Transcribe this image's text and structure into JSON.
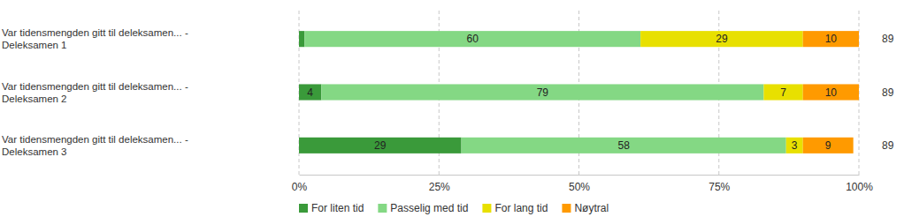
{
  "chart_data": {
    "type": "bar",
    "orientation": "horizontal",
    "stacked": true,
    "data_labels": true,
    "grid": true,
    "legend": "bottom",
    "categories": [
      "Var tidensmengden gitt til deleksamen... - Deleksamen 1",
      "Var tidensmengden gitt til deleksamen... - Deleksamen 2",
      "Var tidensmengden gitt til deleksamen... - Deleksamen 3"
    ],
    "series": [
      {
        "name": "For liten tid",
        "color": "#3a9a3a",
        "values": [
          1,
          4,
          29
        ],
        "value_labels": [
          null,
          "4",
          "29"
        ]
      },
      {
        "name": "Passelig med tid",
        "color": "#84d884",
        "values": [
          60,
          79,
          58
        ],
        "value_labels": [
          "60",
          "79",
          "58"
        ]
      },
      {
        "name": "For lang tid",
        "color": "#e8e000",
        "values": [
          29,
          7,
          3
        ],
        "value_labels": [
          "29",
          "7",
          "3"
        ]
      },
      {
        "name": "Nøytral",
        "color": "#ff9a00",
        "values": [
          10,
          10,
          9
        ],
        "value_labels": [
          "10",
          "10",
          "9"
        ]
      }
    ],
    "n": [
      89,
      89,
      89
    ],
    "xlim": [
      0,
      100
    ],
    "xticks": [
      {
        "value": 0,
        "label": "0%"
      },
      {
        "value": 25,
        "label": "25%"
      },
      {
        "value": 50,
        "label": "50%"
      },
      {
        "value": 75,
        "label": "75%"
      },
      {
        "value": 100,
        "label": "100%"
      }
    ]
  }
}
